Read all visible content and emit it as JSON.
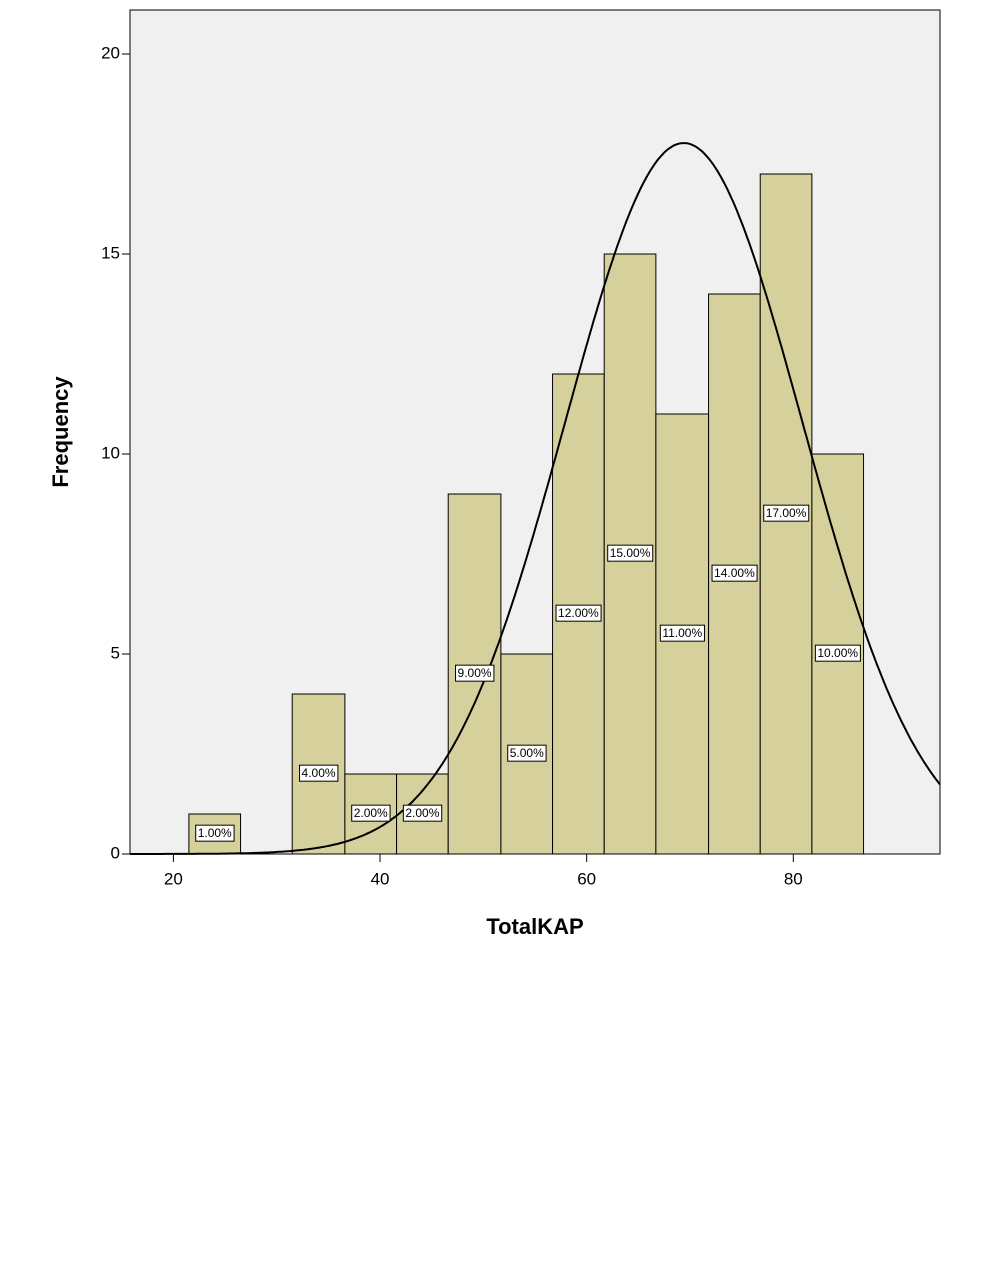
{
  "chart_data": {
    "type": "histogram",
    "xlabel": "TotalKAP",
    "ylabel": "Frequency",
    "bins": [
      21.5,
      26.5,
      31.5,
      36.6,
      41.6,
      46.6,
      51.7,
      56.7,
      61.7,
      66.7,
      71.8,
      76.8,
      81.8,
      86.8
    ],
    "values": [
      1,
      0,
      4,
      2,
      2,
      9,
      5,
      12,
      15,
      11,
      14,
      17,
      10
    ],
    "value_labels": [
      "1.00%",
      null,
      "4.00%",
      "2.00%",
      "2.00%",
      "9.00%",
      "5.00%",
      "12.00%",
      "15.00%",
      "11.00%",
      "14.00%",
      "17.00%",
      "10.00%"
    ],
    "color": "#d6d19c",
    "curve": {
      "mean": 69.4,
      "std": 11.5
    },
    "xlim": [
      15.8,
      94.2
    ],
    "ylim": [
      0,
      21.1
    ],
    "xticks": [
      20,
      40,
      60,
      80
    ],
    "yticks": [
      0,
      5,
      10,
      15,
      20
    ]
  }
}
